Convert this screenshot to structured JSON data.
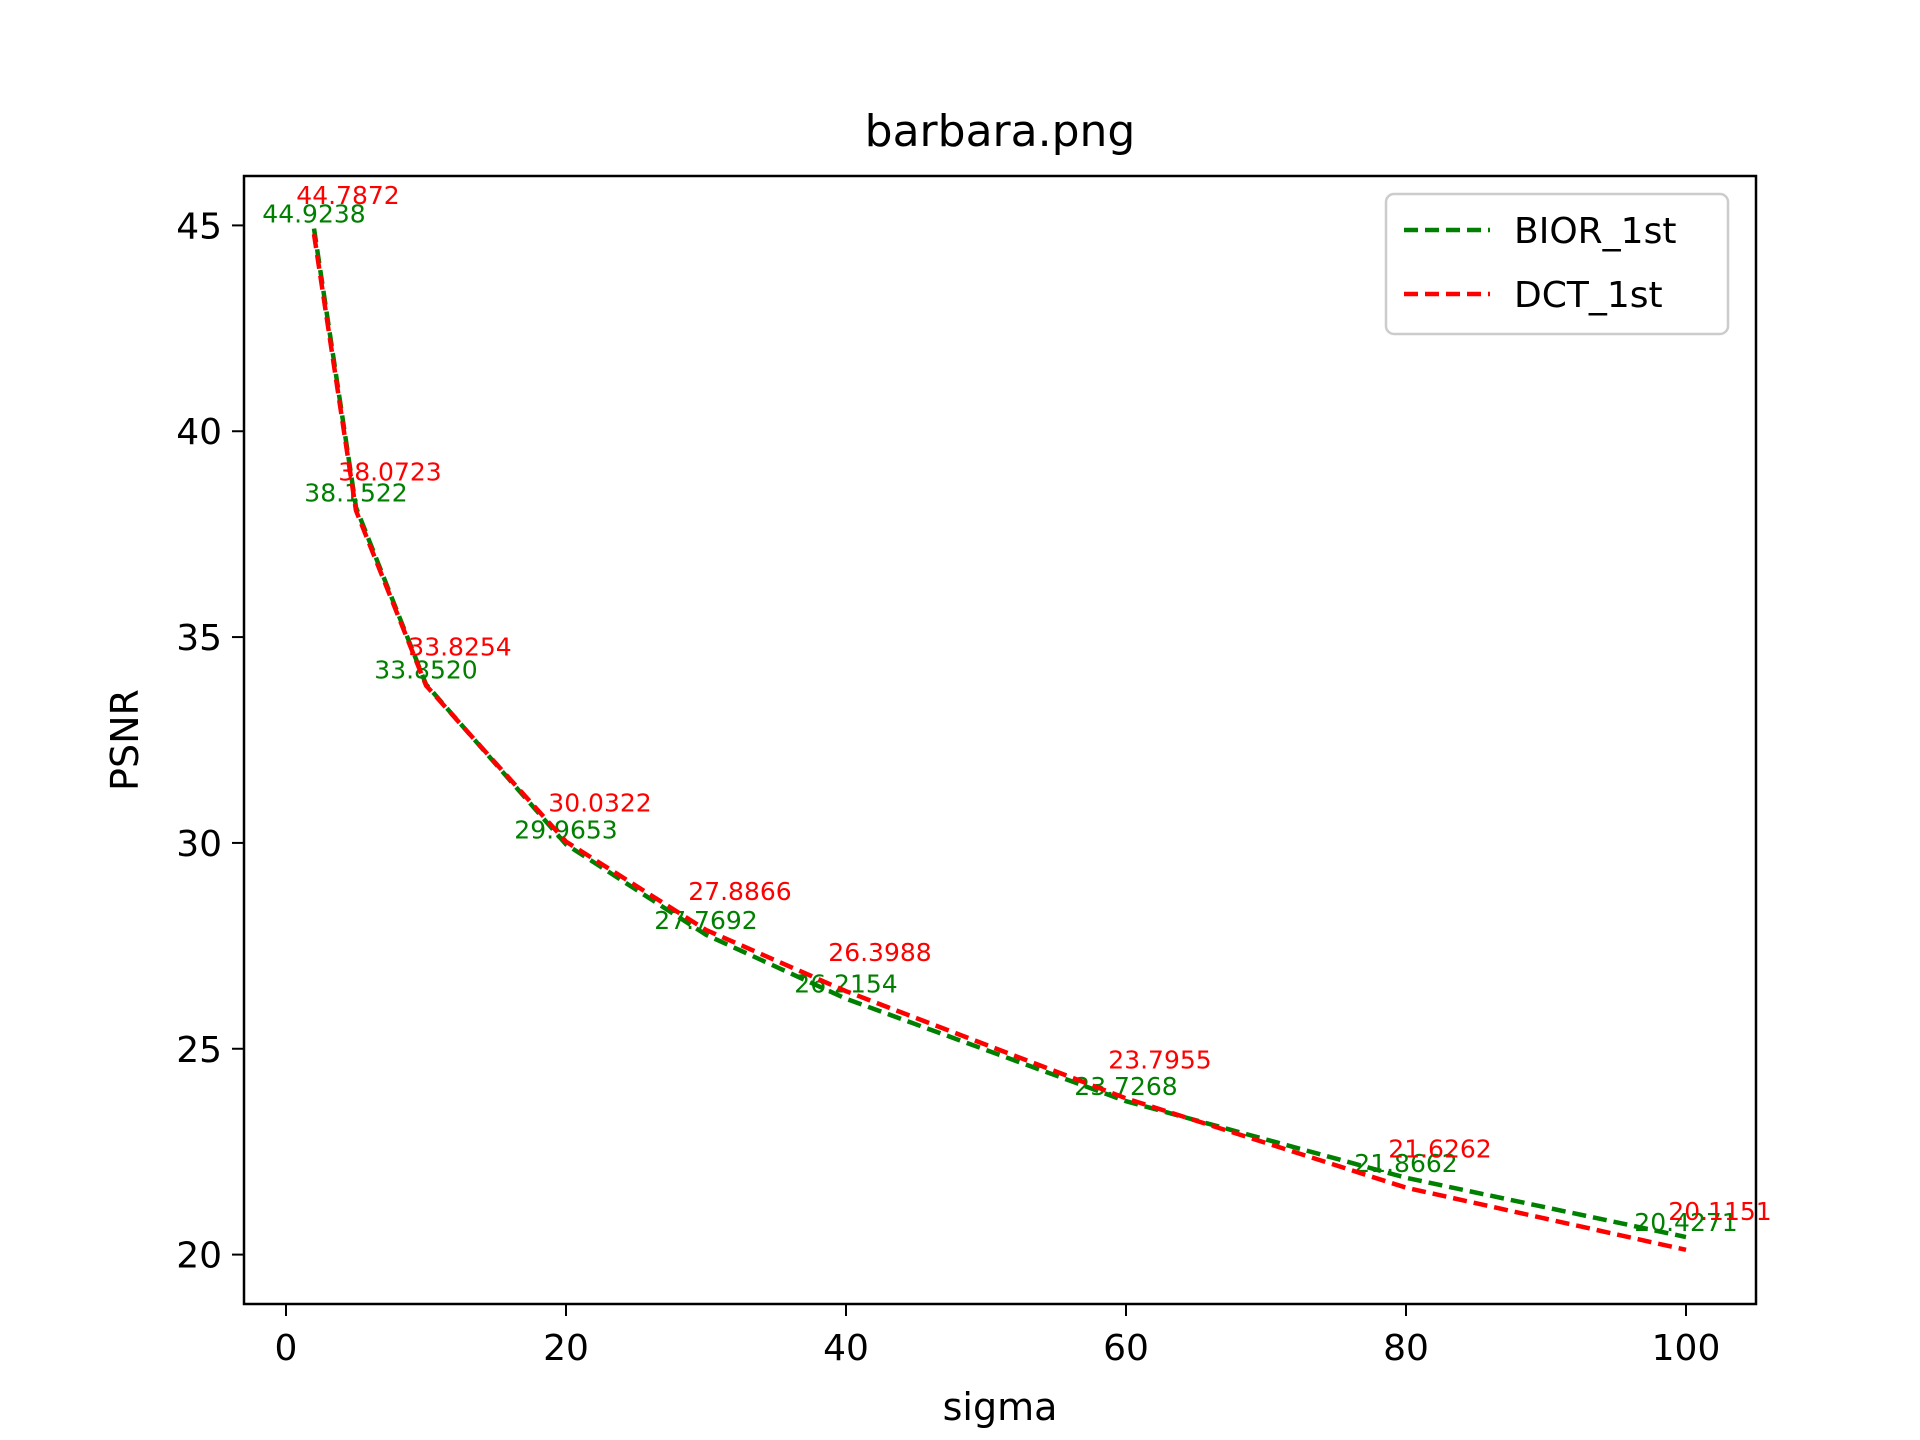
{
  "chart_data": {
    "type": "line",
    "title": "barbara.png",
    "xlabel": "sigma",
    "ylabel": "PSNR",
    "xlim": [
      -3,
      105
    ],
    "ylim": [
      18.8,
      46.2
    ],
    "xticks": [
      0,
      20,
      40,
      60,
      80,
      100
    ],
    "yticks": [
      20,
      25,
      30,
      35,
      40,
      45
    ],
    "grid": false,
    "legend_position": "top-right",
    "x": [
      2,
      5,
      10,
      20,
      30,
      40,
      60,
      80,
      100
    ],
    "series": [
      {
        "name": "BIOR_1st",
        "color": "#008000",
        "style": "dashed",
        "values": [
          44.9238,
          38.1522,
          33.852,
          29.9653,
          27.7692,
          26.2154,
          23.7268,
          21.8662,
          20.4271
        ],
        "labels": [
          "44.9238",
          "38.1522",
          "33.8520",
          "29.9653",
          "27.7692",
          "26.2154",
          "23.7268",
          "21.8662",
          "20.4271"
        ]
      },
      {
        "name": "DCT_1st",
        "color": "#ff0000",
        "style": "dashed",
        "values": [
          44.7872,
          38.0723,
          33.8254,
          30.0322,
          27.8866,
          26.3988,
          23.7955,
          21.6262,
          20.1151
        ],
        "labels": [
          "44.7872",
          "38.0723",
          "33.8254",
          "30.0322",
          "27.8866",
          "26.3988",
          "23.7955",
          "21.6262",
          "20.1151"
        ]
      }
    ]
  }
}
